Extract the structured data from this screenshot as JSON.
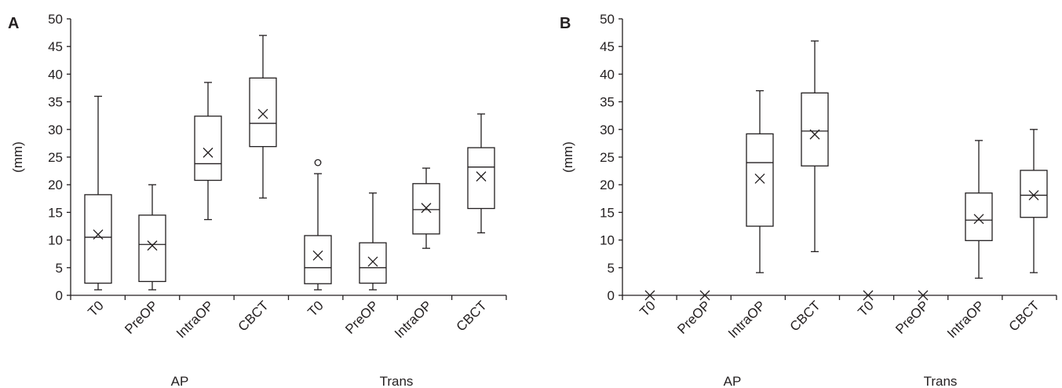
{
  "chart_data": [
    {
      "type": "box",
      "panel_label": "A",
      "ylabel": "(mm)",
      "ylim": [
        0,
        50
      ],
      "yticks": [
        0,
        5,
        10,
        15,
        20,
        25,
        30,
        35,
        40,
        45,
        50
      ],
      "groups": [
        "AP",
        "Trans"
      ],
      "categories": [
        "T0",
        "PreOP",
        "IntraOP",
        "CBCT",
        "T0",
        "PreOP",
        "IntraOP",
        "CBCT"
      ],
      "boxes": [
        {
          "group": "AP",
          "category": "T0",
          "min": 1,
          "q1": 2.2,
          "median": 10.5,
          "q3": 18.2,
          "max": 36,
          "mean": 11,
          "outliers": []
        },
        {
          "group": "AP",
          "category": "PreOP",
          "min": 1,
          "q1": 2.5,
          "median": 9.2,
          "q3": 14.5,
          "max": 20,
          "mean": 9,
          "outliers": []
        },
        {
          "group": "AP",
          "category": "IntraOP",
          "min": 13.7,
          "q1": 20.8,
          "median": 23.8,
          "q3": 32.4,
          "max": 38.5,
          "mean": 25.8,
          "outliers": []
        },
        {
          "group": "AP",
          "category": "CBCT",
          "min": 17.6,
          "q1": 26.9,
          "median": 31.1,
          "q3": 39.3,
          "max": 47,
          "mean": 32.8,
          "outliers": []
        },
        {
          "group": "Trans",
          "category": "T0",
          "min": 1,
          "q1": 2.1,
          "median": 5,
          "q3": 10.8,
          "max": 22,
          "mean": 7.2,
          "outliers": [
            24
          ]
        },
        {
          "group": "Trans",
          "category": "PreOP",
          "min": 1,
          "q1": 2.2,
          "median": 5,
          "q3": 9.5,
          "max": 18.5,
          "mean": 6.1,
          "outliers": []
        },
        {
          "group": "Trans",
          "category": "IntraOP",
          "min": 8.5,
          "q1": 11.1,
          "median": 15.5,
          "q3": 20.2,
          "max": 23,
          "mean": 15.8,
          "outliers": []
        },
        {
          "group": "Trans",
          "category": "CBCT",
          "min": 11.3,
          "q1": 15.7,
          "median": 23.2,
          "q3": 26.7,
          "max": 32.8,
          "mean": 21.5,
          "outliers": []
        }
      ]
    },
    {
      "type": "box",
      "panel_label": "B",
      "ylabel": "(mm)",
      "ylim": [
        0,
        50
      ],
      "yticks": [
        0,
        5,
        10,
        15,
        20,
        25,
        30,
        35,
        40,
        45,
        50
      ],
      "groups": [
        "AP",
        "Trans"
      ],
      "categories": [
        "T0",
        "PreOP",
        "IntraOP",
        "CBCT",
        "T0",
        "PreOP",
        "IntraOP",
        "CBCT"
      ],
      "boxes": [
        {
          "group": "AP",
          "category": "T0",
          "min": 0,
          "q1": 0,
          "median": 0,
          "q3": 0,
          "max": 0,
          "mean": 0,
          "outliers": []
        },
        {
          "group": "AP",
          "category": "PreOP",
          "min": 0,
          "q1": 0,
          "median": 0,
          "q3": 0,
          "max": 0,
          "mean": 0,
          "outliers": []
        },
        {
          "group": "AP",
          "category": "IntraOP",
          "min": 4.1,
          "q1": 12.5,
          "median": 24,
          "q3": 29.2,
          "max": 37,
          "mean": 21.1,
          "outliers": []
        },
        {
          "group": "AP",
          "category": "CBCT",
          "min": 7.9,
          "q1": 23.4,
          "median": 29.7,
          "q3": 36.6,
          "max": 46,
          "mean": 29.1,
          "outliers": []
        },
        {
          "group": "Trans",
          "category": "T0",
          "min": 0,
          "q1": 0,
          "median": 0,
          "q3": 0,
          "max": 0,
          "mean": 0,
          "outliers": []
        },
        {
          "group": "Trans",
          "category": "PreOP",
          "min": 0,
          "q1": 0,
          "median": 0,
          "q3": 0,
          "max": 0,
          "mean": 0,
          "outliers": []
        },
        {
          "group": "Trans",
          "category": "IntraOP",
          "min": 3.1,
          "q1": 9.9,
          "median": 13.6,
          "q3": 18.5,
          "max": 28,
          "mean": 13.8,
          "outliers": []
        },
        {
          "group": "Trans",
          "category": "CBCT",
          "min": 4.1,
          "q1": 14.1,
          "median": 18.1,
          "q3": 22.6,
          "max": 30,
          "mean": 18.1,
          "outliers": []
        }
      ]
    }
  ]
}
